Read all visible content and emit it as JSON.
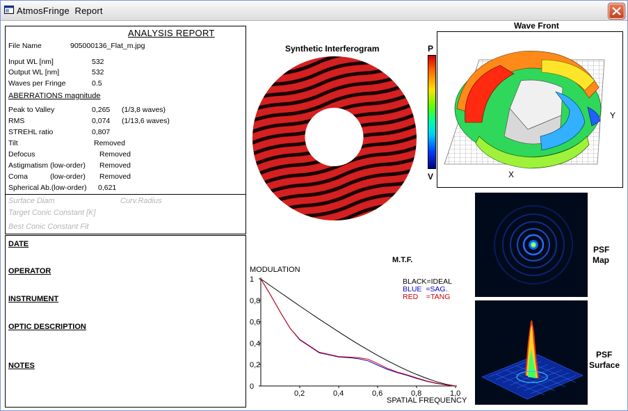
{
  "window": {
    "title": "AtmosFringe  Report"
  },
  "report": {
    "title": "ANALYSIS  REPORT",
    "rows": [
      {
        "label": "File Name",
        "value": "905000136_Flat_m.jpg",
        "extra": ""
      },
      {
        "label": "Input  WL [nm]",
        "value": "532",
        "extra": ""
      },
      {
        "label": "Output WL [nm]",
        "value": "532",
        "extra": ""
      },
      {
        "label": "Waves per Fringe",
        "value": "0.5",
        "extra": ""
      }
    ],
    "aberr_title": "ABERRATIONS magnitude",
    "aberrations": [
      {
        "label": "Peak to Valley",
        "value": "0,265",
        "extra": "(1/3,8 waves)"
      },
      {
        "label": "RMS",
        "value": "0,074",
        "extra": "(1/13,6 waves)"
      },
      {
        "label": "STREHL ratio",
        "value": "0,807",
        "extra": ""
      },
      {
        "label": "Tilt",
        "value": "Removed",
        "extra": ""
      },
      {
        "label": "Defocus",
        "value": "Removed",
        "extra": ""
      },
      {
        "label": "Astigmatism  (low-order)",
        "value": "Removed",
        "extra": ""
      },
      {
        "label": "Coma           (low-order)",
        "value": "Removed",
        "extra": ""
      },
      {
        "label": "Spherical Ab.(low-order)",
        "value": "0,621",
        "extra": ""
      }
    ],
    "greyed": {
      "surface_diam": "Surface Diam",
      "curv_radius": "Curv.Radius",
      "target_conic": "Target Conic Constant [K]",
      "best_conic": "Best Conic Constant Fit"
    }
  },
  "info": {
    "date": "DATE",
    "operator": "OPERATOR",
    "instrument": "INSTRUMENT",
    "optic_description": "OPTIC DESCRIPTION",
    "notes": "NOTES"
  },
  "interferogram": {
    "title": "Synthetic Interferogram"
  },
  "scale": {
    "top": "P",
    "bottom": "V"
  },
  "wavefront": {
    "title": "Wave Front",
    "x_label": "X",
    "y_label": "Y"
  },
  "psf": {
    "map_label_1": "PSF",
    "map_label_2": "Map",
    "surface_label_1": "PSF",
    "surface_label_2": "Surface"
  },
  "mtf": {
    "title": "M.T.F.",
    "legend": [
      {
        "text": "BLACK=IDEAL",
        "color": "#000000"
      },
      {
        "text": "BLUE  =SAG.",
        "color": "#0000cc"
      },
      {
        "text": "RED    =TANG",
        "color": "#cc0000"
      }
    ]
  },
  "chart_data": {
    "type": "line",
    "title": "M.T.F.",
    "ylabel": "MODULATION",
    "xlabel": "SPATIAL FREQUENCY",
    "xlim": [
      0,
      1.0
    ],
    "ylim": [
      0,
      1
    ],
    "xticks": [
      "0,2",
      "0,4",
      "0,6",
      "0,8",
      "1,0"
    ],
    "yticks": [
      "0",
      "0,2",
      "0,4",
      "0,6",
      "0,8",
      "1"
    ],
    "x": [
      0,
      0.05,
      0.1,
      0.15,
      0.2,
      0.25,
      0.3,
      0.35,
      0.4,
      0.45,
      0.5,
      0.55,
      0.6,
      0.65,
      0.7,
      0.75,
      0.8,
      0.85,
      0.9,
      0.95,
      1.0
    ],
    "series": [
      {
        "name": "BLACK=IDEAL",
        "color": "#000000",
        "values": [
          1,
          0.936,
          0.873,
          0.81,
          0.747,
          0.685,
          0.624,
          0.564,
          0.505,
          0.447,
          0.391,
          0.337,
          0.285,
          0.236,
          0.19,
          0.147,
          0.108,
          0.072,
          0.041,
          0.016,
          0
        ]
      },
      {
        "name": "BLUE  =SAG.",
        "color": "#0000cc",
        "values": [
          1,
          0.85,
          0.69,
          0.54,
          0.43,
          0.37,
          0.31,
          0.29,
          0.27,
          0.265,
          0.255,
          0.235,
          0.195,
          0.155,
          0.125,
          0.1,
          0.07,
          0.045,
          0.025,
          0.01,
          0
        ]
      },
      {
        "name": "RED    =TANG",
        "color": "#cc0000",
        "values": [
          1,
          0.85,
          0.69,
          0.54,
          0.435,
          0.375,
          0.315,
          0.295,
          0.275,
          0.27,
          0.265,
          0.25,
          0.21,
          0.165,
          0.13,
          0.105,
          0.075,
          0.048,
          0.027,
          0.011,
          0
        ]
      }
    ],
    "legend_position": "top-right",
    "grid": false
  }
}
